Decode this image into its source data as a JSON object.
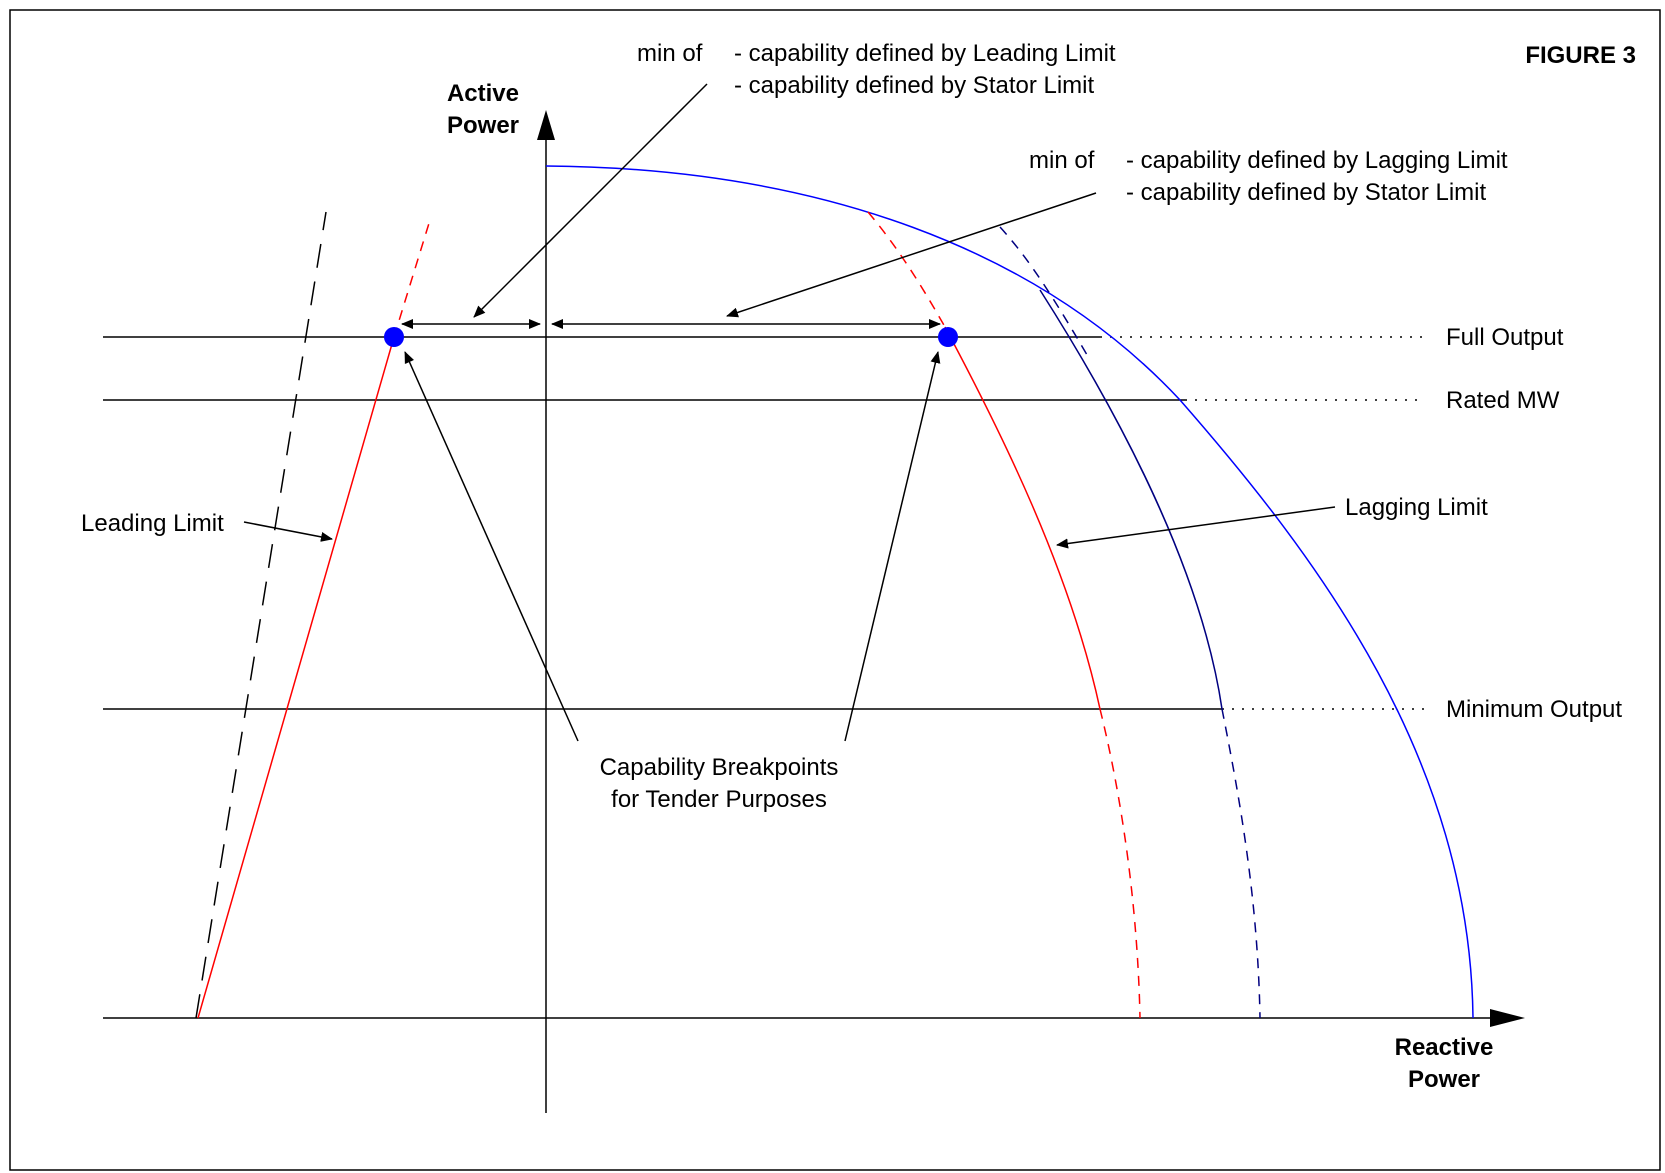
{
  "figure_label": "FIGURE 3",
  "axes": {
    "y_label_line1": "Active",
    "y_label_line2": "Power",
    "x_label_line1": "Reactive",
    "x_label_line2": "Power"
  },
  "levels": {
    "full_output": "Full Output",
    "rated_mw": "Rated MW",
    "minimum_output": "Minimum Output"
  },
  "curves": {
    "leading_limit": "Leading Limit",
    "lagging_limit": "Lagging Limit"
  },
  "annotations": {
    "leading_min_of": "min of",
    "leading_line1": "- capability defined by Leading Limit",
    "leading_line2": "- capability defined by Stator Limit",
    "lagging_min_of": "min of",
    "lagging_line1": "- capability defined by Lagging Limit",
    "lagging_line2": "- capability defined by Stator Limit",
    "breakpoints_line1": "Capability Breakpoints",
    "breakpoints_line2": "for Tender Purposes"
  },
  "colors": {
    "stator_limit": "#0000ff",
    "limit_red": "#ff0000",
    "dark_blue": "#000080",
    "breakpoint": "#0000ff",
    "lines": "#000000"
  }
}
